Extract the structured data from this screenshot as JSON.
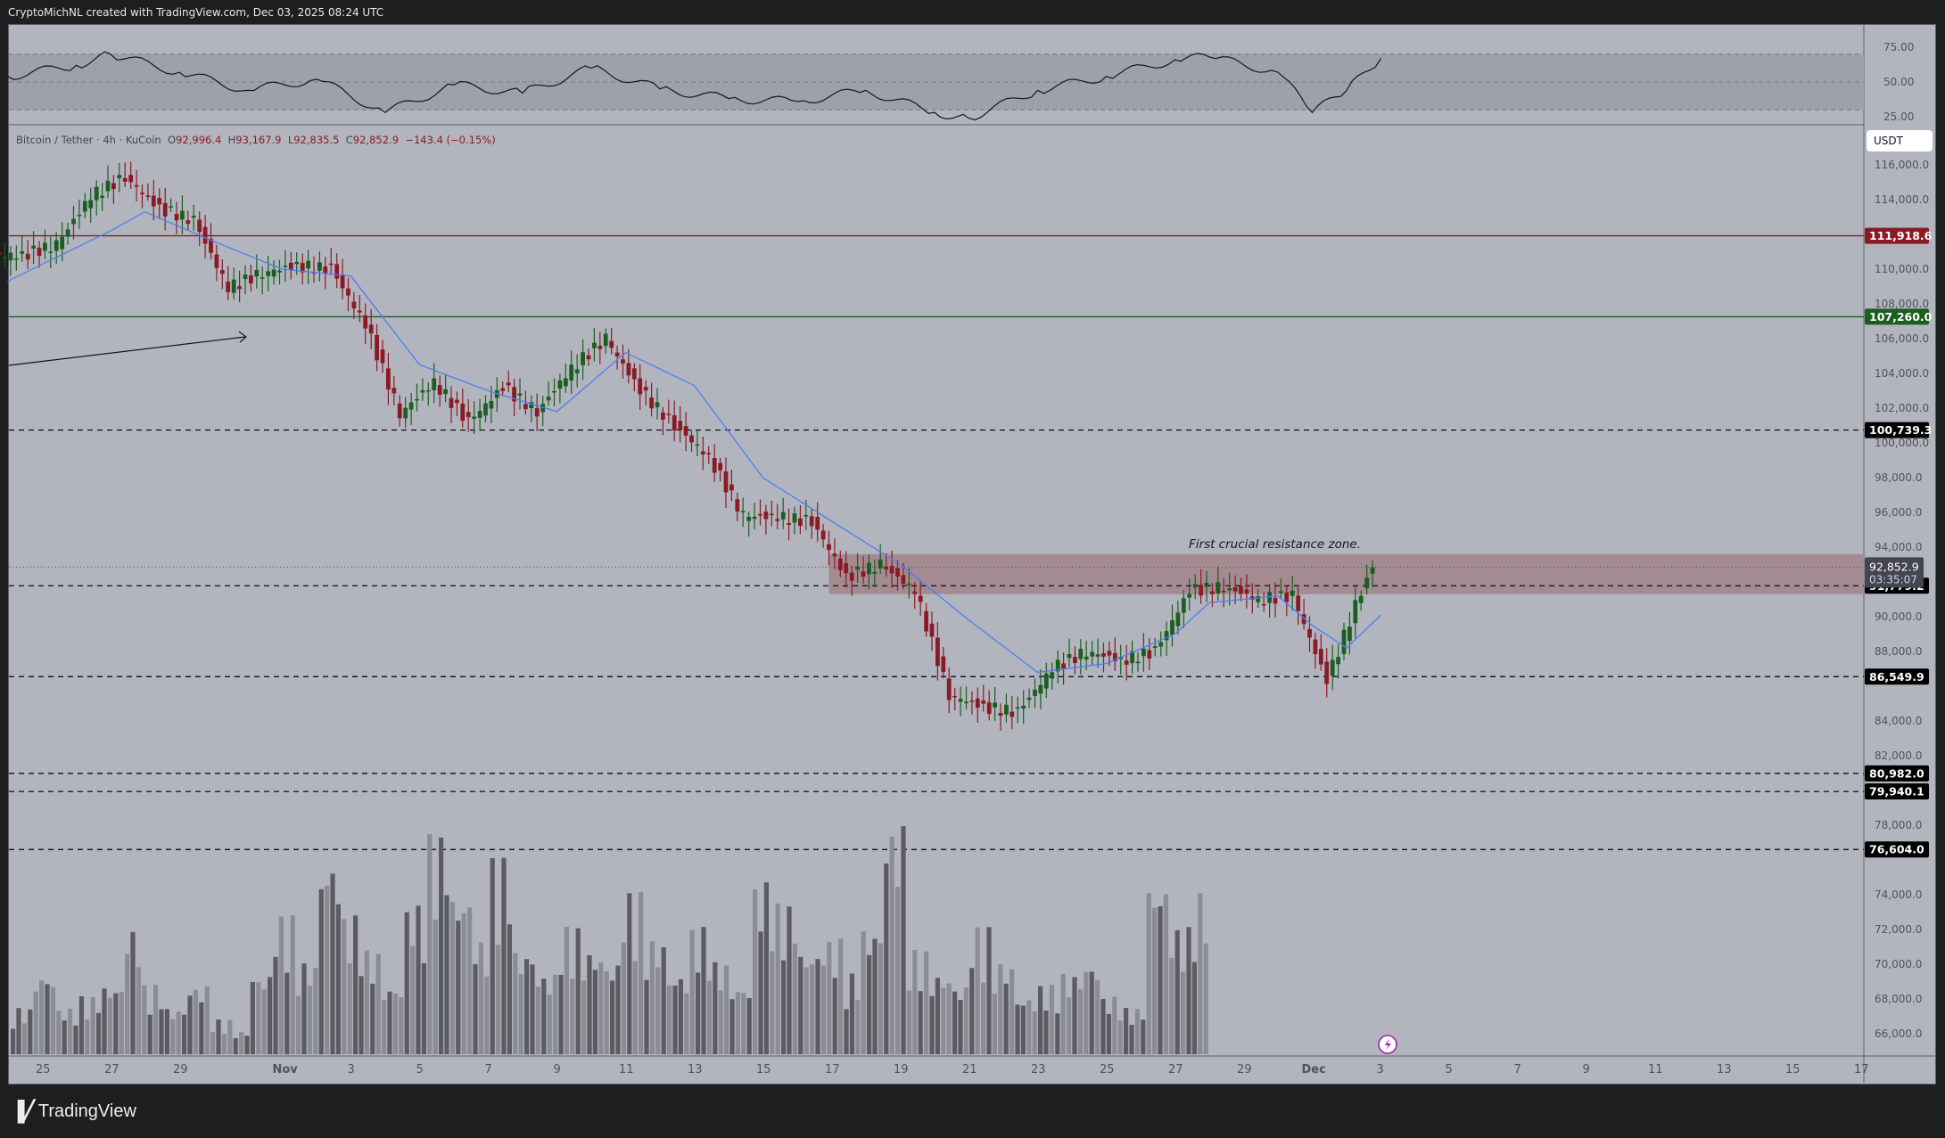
{
  "header": {
    "caption": "CryptoMichNL created with TradingView.com, Dec 03, 2025 08:24 UTC"
  },
  "legend": {
    "symbol": "Bitcoin / Tether · 4h · KuCoin",
    "open_label": "O",
    "open": "92,996.4",
    "high_label": "H",
    "high": "93,167.9",
    "low_label": "L",
    "low": "92,835.5",
    "close_label": "C",
    "close": "92,852.9",
    "change": "−143.4 (−0.15%)"
  },
  "price_axis": {
    "currency": "USDT",
    "ticks": [
      "116,000.0",
      "114,000.0",
      "110,000.0",
      "108,000.0",
      "106,000.0",
      "104,000.0",
      "102,000.0",
      "100,000.0",
      "98,000.0",
      "96,000.0",
      "94,000.0",
      "90,000.0",
      "88,000.0",
      "84,000.0",
      "82,000.0",
      "78,000.0",
      "74,000.0",
      "72,000.0",
      "70,000.0",
      "68,000.0",
      "66,000.0"
    ],
    "current_price": "92,852.9",
    "countdown": "03:35:07"
  },
  "rsi_axis": {
    "ticks": [
      "75.00",
      "50.00",
      "25.00"
    ]
  },
  "time_axis": {
    "labels": [
      "25",
      "27",
      "29",
      "Nov",
      "3",
      "5",
      "7",
      "9",
      "11",
      "13",
      "15",
      "17",
      "19",
      "21",
      "23",
      "25",
      "27",
      "29",
      "Dec",
      "3",
      "5",
      "7",
      "9",
      "11",
      "13",
      "15",
      "17"
    ]
  },
  "annotation": {
    "text": "First crucial resistance zone."
  },
  "footer": {
    "brand": "TradingView"
  },
  "colors": {
    "background": "#b2b5be",
    "frame": "#1e1e1e",
    "up": "#1b5e20",
    "down": "#8b1a24",
    "ma": "#4c7ef3",
    "resistance_line": "#8b1a24",
    "support_line": "#1b5e20",
    "zone": "#a48a91"
  },
  "chart_data": [
    {
      "type": "candlestick",
      "title": "Bitcoin / Tether · 4h · KuCoin",
      "xlabel": "",
      "ylabel": "USDT",
      "ylim": [
        65000,
        117000
      ],
      "x_range": [
        "Oct 24 2025",
        "Dec 17 2025"
      ],
      "last_ohlc": {
        "open": 92996.4,
        "high": 93167.9,
        "low": 92835.5,
        "close": 92852.9,
        "change": -143.4,
        "change_pct": -0.15
      },
      "approx_daily_closes": {
        "x": [
          "Oct 24",
          "Oct 25",
          "Oct 26",
          "Oct 27",
          "Oct 28",
          "Oct 29",
          "Oct 30",
          "Oct 31",
          "Nov 1",
          "Nov 2",
          "Nov 3",
          "Nov 4",
          "Nov 5",
          "Nov 6",
          "Nov 7",
          "Nov 8",
          "Nov 9",
          "Nov 10",
          "Nov 11",
          "Nov 12",
          "Nov 13",
          "Nov 14",
          "Nov 15",
          "Nov 16",
          "Nov 17",
          "Nov 18",
          "Nov 19",
          "Nov 20",
          "Nov 21",
          "Nov 22",
          "Nov 23",
          "Nov 24",
          "Nov 25",
          "Nov 26",
          "Nov 27",
          "Nov 28",
          "Nov 29",
          "Nov 30",
          "Dec 1",
          "Dec 2",
          "Dec 3"
        ],
        "values": [
          110800,
          111400,
          114200,
          115300,
          113500,
          112800,
          108900,
          109800,
          110200,
          110000,
          106800,
          101700,
          103500,
          101200,
          103200,
          101800,
          104300,
          106000,
          103000,
          101000,
          99200,
          95800,
          95700,
          95500,
          92300,
          93000,
          91500,
          85500,
          84800,
          84500,
          87000,
          88000,
          87500,
          88000,
          91500,
          91700,
          91000,
          91200,
          86300,
          91500,
          92852.9
        ],
        "highs_lows": {
          "max_high": 116300,
          "min_low": 80600
        }
      },
      "horizontal_levels": [
        {
          "price": 111918.6,
          "label": "111,918.6",
          "style": "solid",
          "color": "#8b1a24"
        },
        {
          "price": 107260.0,
          "label": "107,260.0",
          "style": "solid",
          "color": "#1b5e20"
        },
        {
          "price": 100739.3,
          "label": "100,739.3",
          "style": "dashed",
          "color": "#000000"
        },
        {
          "price": 91779.2,
          "label": "91,779.2",
          "style": "dashed",
          "color": "#000000"
        },
        {
          "price": 86549.9,
          "label": "86,549.9",
          "style": "dashed",
          "color": "#000000"
        },
        {
          "price": 80982.0,
          "label": "80,982.0",
          "style": "dashed",
          "color": "#000000"
        },
        {
          "price": 79940.1,
          "label": "79,940.1",
          "style": "dashed",
          "color": "#000000"
        },
        {
          "price": 76604.0,
          "label": "76,604.0",
          "style": "dashed",
          "color": "#000000"
        }
      ],
      "zones": [
        {
          "label": "First crucial resistance zone.",
          "from_price": 91300,
          "to_price": 93600,
          "from_date": "Nov 17",
          "to_date": "right edge"
        }
      ],
      "moving_average": {
        "name": "MA",
        "color": "#4c7ef3",
        "points": [
          [
            "Oct 24",
            109300
          ],
          [
            "Oct 27",
            112200
          ],
          [
            "Oct 28",
            113300
          ],
          [
            "Oct 30",
            111600
          ],
          [
            "Nov 1",
            110000
          ],
          [
            "Nov 3",
            109600
          ],
          [
            "Nov 5",
            104500
          ],
          [
            "Nov 7",
            103000
          ],
          [
            "Nov 9",
            101800
          ],
          [
            "Nov 11",
            105200
          ],
          [
            "Nov 13",
            103300
          ],
          [
            "Nov 15",
            98000
          ],
          [
            "Nov 17",
            95500
          ],
          [
            "Nov 19",
            93000
          ],
          [
            "Nov 21",
            89800
          ],
          [
            "Nov 23",
            86800
          ],
          [
            "Nov 25",
            87300
          ],
          [
            "Nov 27",
            89000
          ],
          [
            "Nov 28",
            90800
          ],
          [
            "Nov 30",
            91200
          ],
          [
            "Dec 1",
            89500
          ],
          [
            "Dec 2",
            88200
          ],
          [
            "Dec 3",
            90100
          ]
        ]
      },
      "arrow": {
        "from": [
          "Oct 24",
          106000
        ],
        "to": [
          "Oct 30",
          106100
        ]
      }
    },
    {
      "type": "line",
      "title": "RSI",
      "ylim": [
        20,
        80
      ],
      "bands": [
        30,
        50,
        70
      ],
      "y_ticks": [
        75,
        50,
        25
      ],
      "approx_values": {
        "x": [
          "Oct 24",
          "Oct 26",
          "Oct 27",
          "Oct 29",
          "Oct 31",
          "Nov 2",
          "Nov 4",
          "Nov 6",
          "Nov 8",
          "Nov 10",
          "Nov 12",
          "Nov 14",
          "Nov 16",
          "Nov 18",
          "Nov 20",
          "Nov 21",
          "Nov 23",
          "Nov 25",
          "Nov 27",
          "Nov 28",
          "Nov 30",
          "Dec 1",
          "Dec 2",
          "Dec 3"
        ],
        "values": [
          54,
          62,
          70,
          57,
          44,
          52,
          28,
          48,
          42,
          60,
          45,
          38,
          36,
          44,
          28,
          24,
          44,
          54,
          66,
          68,
          57,
          28,
          44,
          67
        ]
      }
    },
    {
      "type": "bar",
      "title": "Volume",
      "note": "relative heights, scale not labeled",
      "approx_relative_values": [
        0.2,
        0.35,
        0.2,
        0.25,
        0.3,
        0.55,
        0.3,
        0.2,
        0.3,
        0.15,
        0.1,
        0.35,
        0.6,
        0.4,
        0.85,
        0.6,
        0.45,
        0.3,
        0.65,
        0.95,
        0.7,
        0.5,
        0.85,
        0.45,
        0.35,
        0.55,
        0.45,
        0.4,
        0.7,
        0.5,
        0.35,
        0.55,
        0.4,
        0.3,
        0.75,
        0.65,
        0.45,
        0.5,
        0.35,
        0.55,
        1.0,
        0.45,
        0.35,
        0.3,
        0.55,
        0.4,
        0.25,
        0.3,
        0.35,
        0.4,
        0.25,
        0.2,
        0.75,
        0.55,
        0.7
      ]
    }
  ]
}
